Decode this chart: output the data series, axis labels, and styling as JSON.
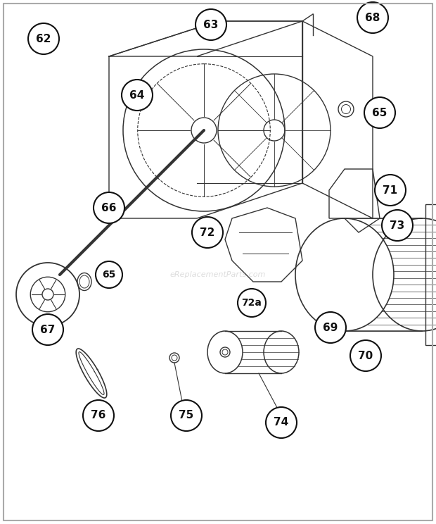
{
  "bg_color": "#ffffff",
  "border_color": "#aaaaaa",
  "label_bg": "#ffffff",
  "label_fg": "#111111",
  "label_border": "#111111",
  "line_color": "#333333",
  "watermark_color": "#bbbbbb",
  "watermark_text": "eReplacementParts.com",
  "figsize": [
    6.2,
    7.44
  ],
  "dpi": 100
}
